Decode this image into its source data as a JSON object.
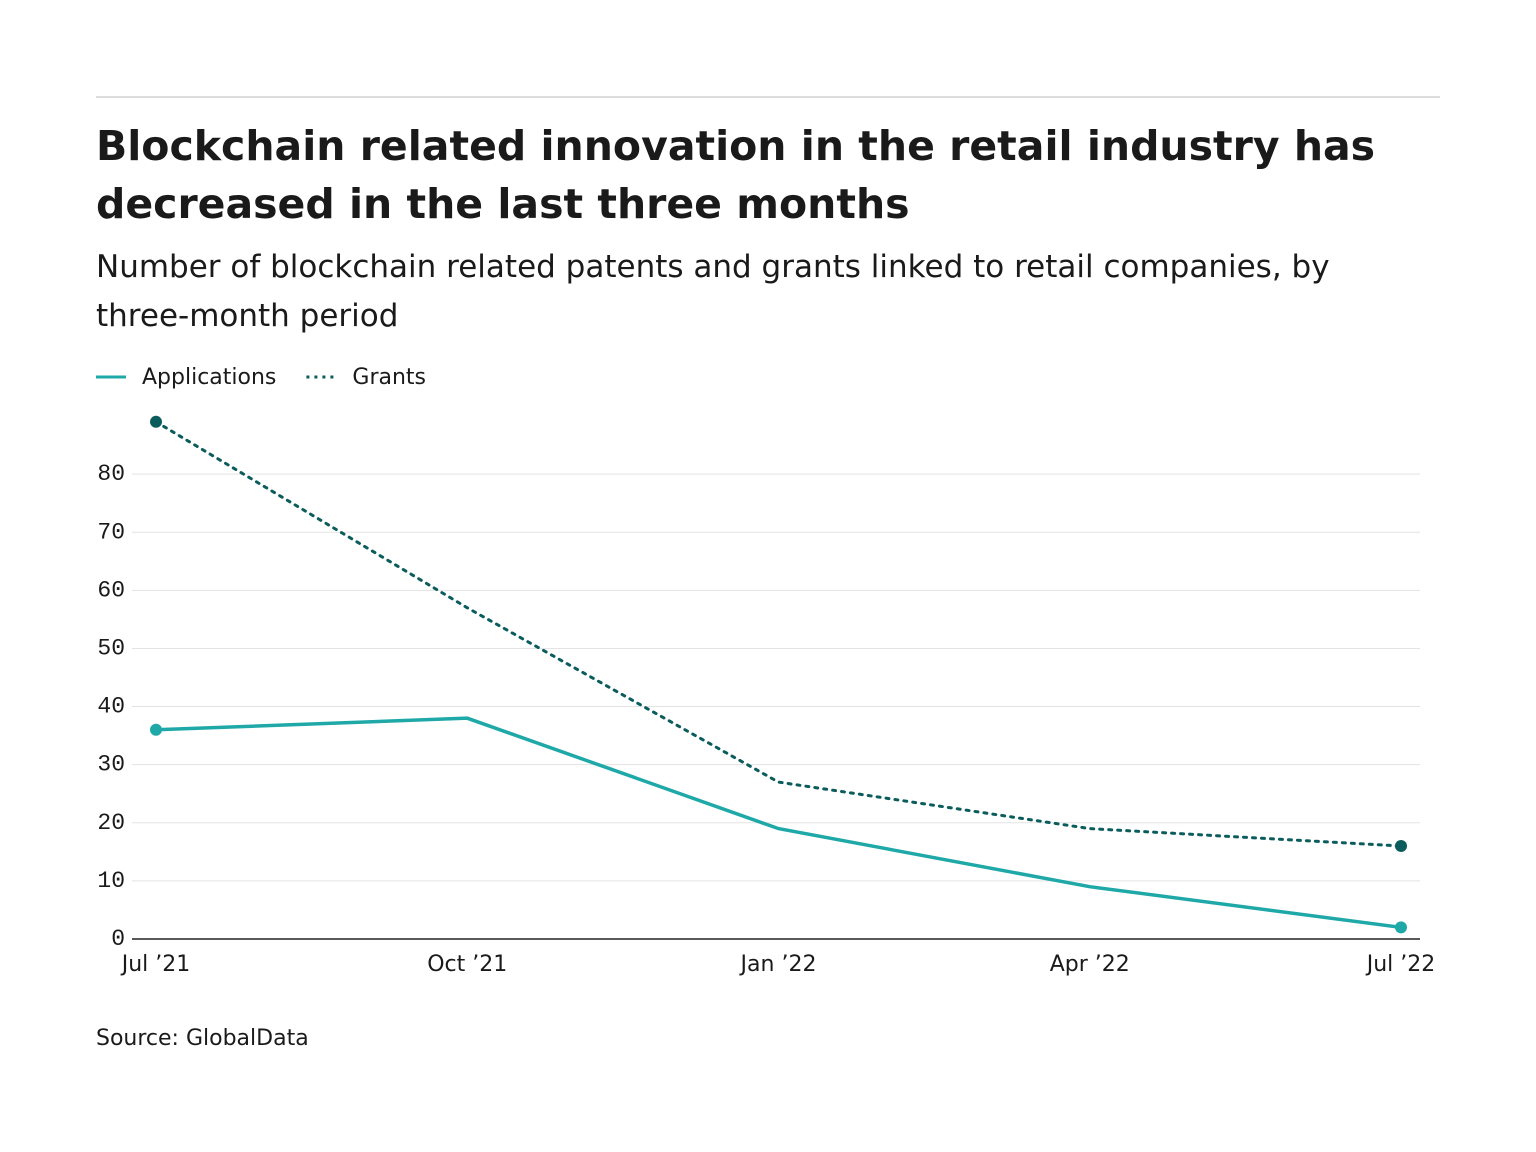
{
  "chart_data": {
    "type": "line",
    "title": "Blockchain related innovation in the retail industry has decreased in the last three months",
    "subtitle": "Number of blockchain related patents and grants linked to retail companies, by three-month period",
    "source": "Source: GlobalData",
    "categories": [
      "Jul ’21",
      "Oct ’21",
      "Jan ’22",
      "Apr ’22",
      "Jul ’22"
    ],
    "series": [
      {
        "name": "Applications",
        "color": "#1fa8a8",
        "style": "solid",
        "values": [
          36,
          38,
          19,
          9,
          2
        ]
      },
      {
        "name": "Grants",
        "color": "#0b5c5c",
        "style": "dotted",
        "values": [
          89,
          57,
          27,
          19,
          16
        ]
      }
    ],
    "ylim": [
      0,
      90
    ],
    "yticks": [
      0,
      10,
      20,
      30,
      40,
      50,
      60,
      70,
      80
    ],
    "grid": true
  }
}
